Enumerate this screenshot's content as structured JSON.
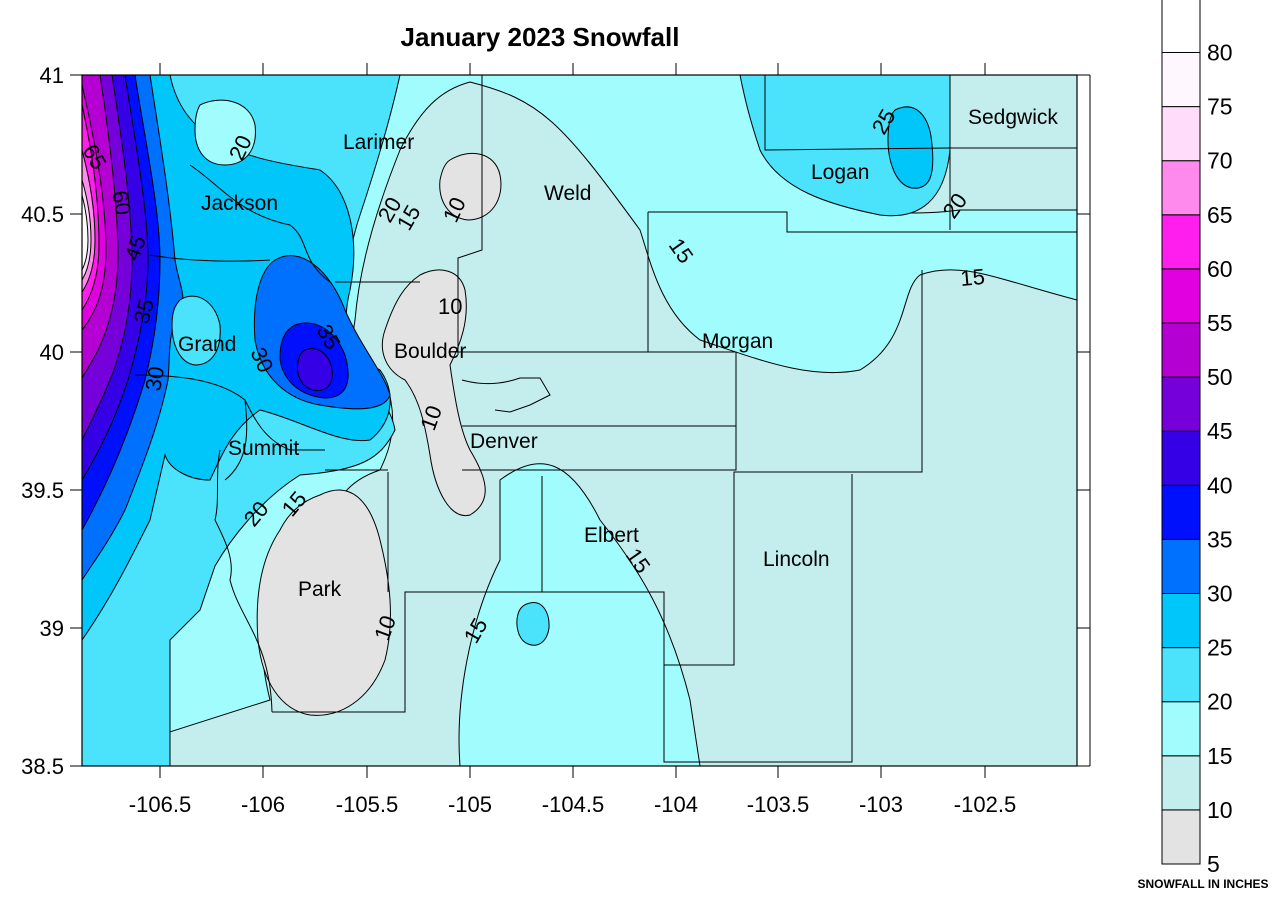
{
  "title": "January 2023 Snowfall",
  "map": {
    "x_ticks": [
      "-106.5",
      "-106",
      "-105.5",
      "-105",
      "-104.5",
      "-104",
      "-103.5",
      "-103",
      "-102.5"
    ],
    "y_ticks": [
      "41",
      "40.5",
      "40",
      "39.5",
      "39",
      "38.5"
    ],
    "counties": [
      "Larimer",
      "Jackson",
      "Weld",
      "Logan",
      "Sedgwick",
      "Grand",
      "Boulder",
      "Morgan",
      "Summit",
      "Denver",
      "Elbert",
      "Lincoln",
      "Park"
    ],
    "contour_labels": [
      "65",
      "60",
      "45",
      "35",
      "30",
      "20",
      "20",
      "15",
      "10",
      "10",
      "35",
      "30",
      "10",
      "20",
      "15",
      "10",
      "15",
      "15",
      "15",
      "25",
      "20",
      "15"
    ]
  },
  "legend": {
    "levels": [
      "5",
      "10",
      "15",
      "20",
      "25",
      "30",
      "35",
      "40",
      "45",
      "50",
      "55",
      "60",
      "65",
      "70",
      "75",
      "80"
    ],
    "colors": [
      "#e3e3e3",
      "#c4eeee",
      "#a0fcfd",
      "#4be3fb",
      "#00c6f9",
      "#0070ff",
      "#0010fd",
      "#3500e6",
      "#7600d9",
      "#b400d2",
      "#e000e0",
      "#ff1eee",
      "#ff8aee",
      "#ffdcfa",
      "#fff7fe",
      "#ffffff"
    ],
    "caption": "SNOWFALL IN INCHES"
  }
}
